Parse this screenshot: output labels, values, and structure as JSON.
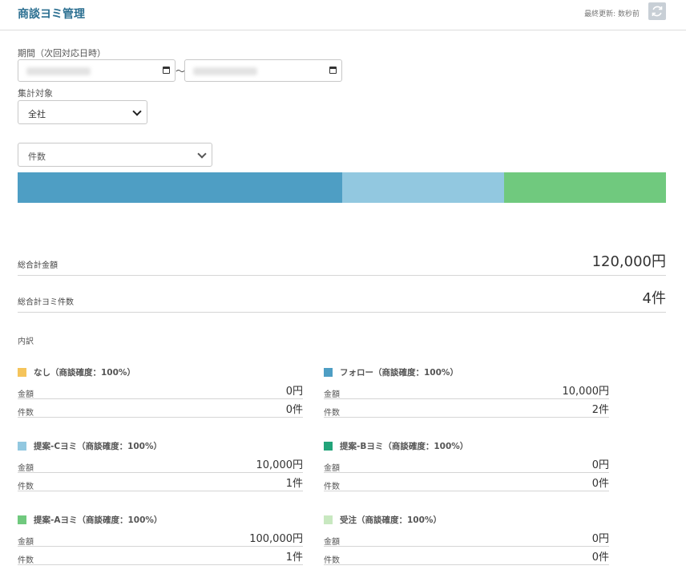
{
  "header": {
    "title": "商談ヨミ管理",
    "updated": "最終更新: 数秒前",
    "refresh_icon": "refresh-icon"
  },
  "filters": {
    "period_label": "期間（次回対応日時）",
    "range_sep": "〜",
    "target_label": "集計対象",
    "target_value": "全社",
    "metric_value": "件数"
  },
  "colors": {
    "none": "#f5c45b",
    "follow": "#4e9ec4",
    "propC": "#92c8e0",
    "propB": "#22a47a",
    "propA": "#70c97e",
    "won": "#c8e8c0"
  },
  "bar_segments": [
    {
      "name": "フォロー",
      "count": 2,
      "color": "#4e9ec4"
    },
    {
      "name": "提案-Cヨミ",
      "count": 1,
      "color": "#92c8e0"
    },
    {
      "name": "提案-Aヨミ",
      "count": 1,
      "color": "#70c97e"
    }
  ],
  "totals": {
    "amount_label": "総合計金額",
    "amount_value": "120,000円",
    "count_label": "総合計ヨミ件数",
    "count_value": "4件"
  },
  "breakdown_label": "内訳",
  "breakdown": [
    {
      "title": "なし（商談確度：100%）",
      "color": "#f5c45b",
      "amount_label": "金額",
      "amount": "0円",
      "count_label": "件数",
      "count": "0件"
    },
    {
      "title": "フォロー（商談確度：100%）",
      "color": "#4e9ec4",
      "amount_label": "金額",
      "amount": "10,000円",
      "count_label": "件数",
      "count": "2件"
    },
    {
      "title": "提案-Cヨミ（商談確度：100%）",
      "color": "#92c8e0",
      "amount_label": "金額",
      "amount": "10,000円",
      "count_label": "件数",
      "count": "1件"
    },
    {
      "title": "提案-Bヨミ（商談確度：100%）",
      "color": "#22a47a",
      "amount_label": "金額",
      "amount": "0円",
      "count_label": "件数",
      "count": "0件"
    },
    {
      "title": "提案-Aヨミ（商談確度：100%）",
      "color": "#70c97e",
      "amount_label": "金額",
      "amount": "100,000円",
      "count_label": "件数",
      "count": "1件"
    },
    {
      "title": "受注（商談確度：100%）",
      "color": "#c8e8c0",
      "amount_label": "金額",
      "amount": "0円",
      "count_label": "件数",
      "count": "0件"
    }
  ]
}
